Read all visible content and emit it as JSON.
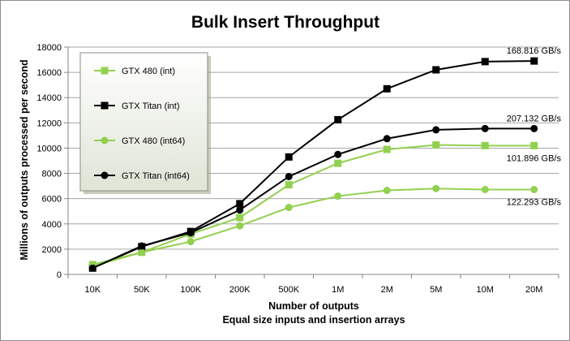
{
  "chart_data": {
    "type": "line",
    "title": "Bulk Insert Throughput",
    "xlabel": [
      "Number of outputs",
      "Equal size inputs and insertion arrays"
    ],
    "ylabel": "Millions of outputs  processed per second",
    "categories": [
      "10K",
      "50K",
      "100K",
      "200K",
      "500K",
      "1M",
      "2M",
      "5M",
      "10M",
      "20M"
    ],
    "ylim": [
      0,
      18000
    ],
    "yticks": [
      0,
      2000,
      4000,
      6000,
      8000,
      10000,
      12000,
      14000,
      16000,
      18000
    ],
    "grid": "horizontal",
    "legend_placement": "top-left",
    "series": [
      {
        "name": "GTX 480 (int)",
        "color": "#92d050",
        "marker": "square",
        "values": [
          780,
          1750,
          3200,
          4500,
          7100,
          8800,
          9900,
          10250,
          10200,
          10200
        ]
      },
      {
        "name": "GTX Titan (int)",
        "color": "#000000",
        "marker": "square",
        "values": [
          500,
          2200,
          3400,
          5600,
          9300,
          12250,
          14700,
          16200,
          16850,
          16900
        ]
      },
      {
        "name": "GTX 480 (int64)",
        "color": "#92d050",
        "marker": "circle",
        "values": [
          650,
          1750,
          2600,
          3850,
          5300,
          6200,
          6650,
          6800,
          6720,
          6720
        ]
      },
      {
        "name": "GTX Titan (int64)",
        "color": "#000000",
        "marker": "circle",
        "values": [
          500,
          2250,
          3300,
          5100,
          7750,
          9500,
          10750,
          11450,
          11550,
          11550
        ]
      }
    ],
    "annotations": [
      {
        "text": "168.816 GB/s",
        "series": 1
      },
      {
        "text": "207.132 GB/s",
        "series": 3
      },
      {
        "text": "101.896 GB/s",
        "series": 0
      },
      {
        "text": "122.293 GB/s",
        "series": 2
      }
    ]
  }
}
